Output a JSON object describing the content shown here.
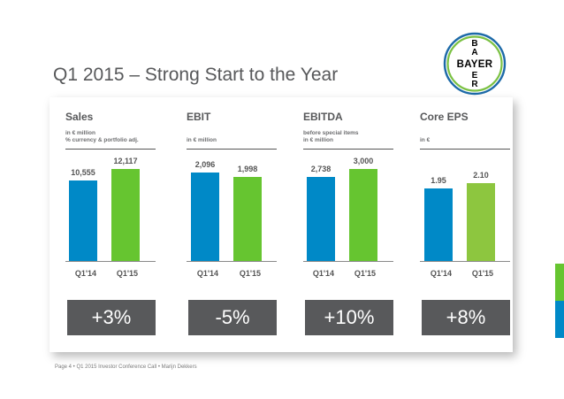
{
  "slide": {
    "title": "Q1 2015 – Strong Start to the Year",
    "footer": "Page 4 • Q1 2015 Investor Conference Call • Marijn Dekkers",
    "logo_text_horizontal": "BAYER",
    "logo_text_vertical": "BAYER",
    "logo_icon": "bayer-cross-logo"
  },
  "colors": {
    "blue": "#0089c7",
    "green": "#66c530",
    "lime": "#8dc63f",
    "badge": "#58595b",
    "title": "#57585a"
  },
  "chart_data": [
    {
      "type": "bar",
      "title": "Sales",
      "subtitle_lines": [
        "in € million",
        "% currency & portfolio adj."
      ],
      "categories": [
        "Q1'14",
        "Q1'15"
      ],
      "values": [
        10555,
        12117
      ],
      "value_labels": [
        "10,555",
        "12,117"
      ],
      "colors": [
        "#0089c7",
        "#66c530"
      ],
      "ylim": [
        0,
        12117
      ],
      "change": "+3%"
    },
    {
      "type": "bar",
      "title": "EBIT",
      "subtitle_lines": [
        "in € million"
      ],
      "categories": [
        "Q1'14",
        "Q1'15"
      ],
      "values": [
        2096,
        1998
      ],
      "value_labels": [
        "2,096",
        "1,998"
      ],
      "colors": [
        "#0089c7",
        "#66c530"
      ],
      "ylim": [
        0,
        2180
      ],
      "change": "-5%"
    },
    {
      "type": "bar",
      "title": "EBITDA",
      "subtitle_lines": [
        "before special items",
        "in € million"
      ],
      "categories": [
        "Q1'14",
        "Q1'15"
      ],
      "values": [
        2738,
        3000
      ],
      "value_labels": [
        "2,738",
        "3,000"
      ],
      "colors": [
        "#0089c7",
        "#66c530"
      ],
      "ylim": [
        0,
        3000
      ],
      "change": "+10%"
    },
    {
      "type": "bar",
      "title": "Core EPS",
      "subtitle_lines": [
        "in €"
      ],
      "categories": [
        "Q1'14",
        "Q1'15"
      ],
      "values": [
        1.95,
        2.1
      ],
      "value_labels": [
        "1.95",
        "2.10"
      ],
      "colors": [
        "#0089c7",
        "#8dc63f"
      ],
      "ylim": [
        0,
        2.48
      ],
      "change": "+8%"
    }
  ]
}
